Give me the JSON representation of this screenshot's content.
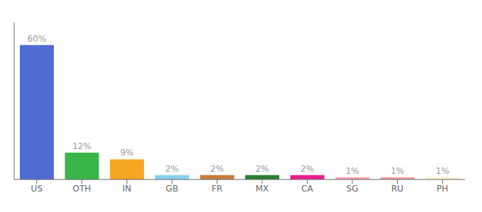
{
  "chart_data": {
    "type": "bar",
    "categories": [
      "US",
      "OTH",
      "IN",
      "GB",
      "FR",
      "MX",
      "CA",
      "SG",
      "RU",
      "PH"
    ],
    "values": [
      60,
      12,
      9,
      2,
      2,
      2,
      2,
      1,
      1,
      1
    ],
    "value_labels": [
      "60%",
      "12%",
      "9%",
      "2%",
      "2%",
      "2%",
      "2%",
      "1%",
      "1%",
      "1%"
    ],
    "colors": [
      "#4f6cd4",
      "#3ab54a",
      "#f5a623",
      "#87ceeb",
      "#c47d3a",
      "#2e7d32",
      "#e91e8c",
      "#f4a0b5",
      "#ef9a9a",
      "#f5f0c8"
    ],
    "ylim": [
      0,
      70
    ],
    "data_labels": true,
    "tick_labels": "x",
    "grid": false
  }
}
